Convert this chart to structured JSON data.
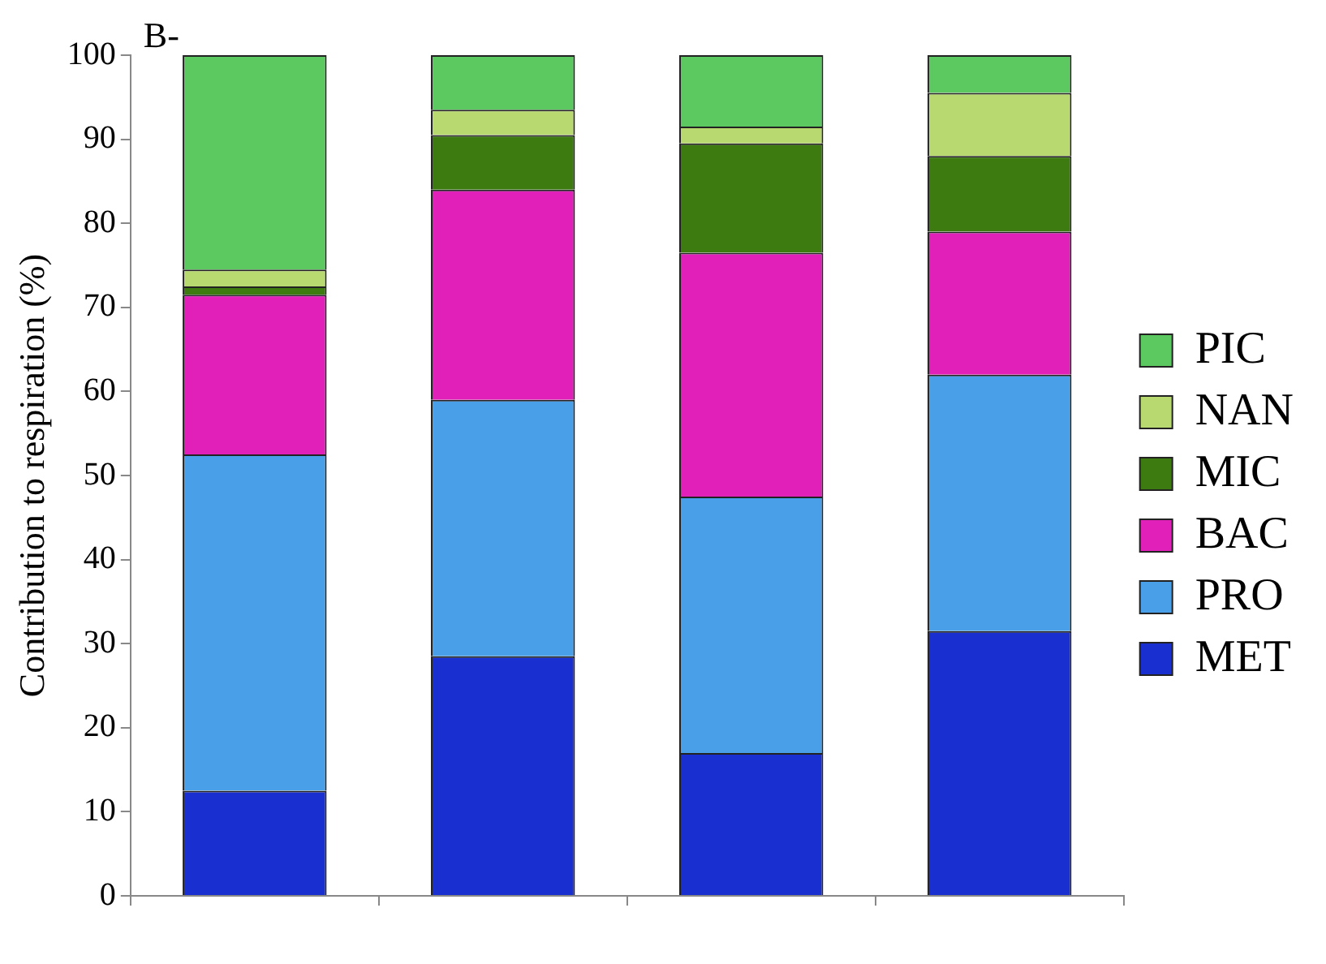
{
  "chart_data": {
    "type": "bar",
    "title": "B-",
    "ylabel": "Contribution to respiration (%)",
    "stacked": true,
    "categories": [
      null,
      null,
      null,
      null
    ],
    "series": [
      {
        "name": "MET",
        "color": "#1a2fd0",
        "values": [
          12.5,
          28.5,
          17,
          31.5
        ]
      },
      {
        "name": "PRO",
        "color": "#4aa0e8",
        "values": [
          40,
          30.5,
          30.5,
          30.5
        ]
      },
      {
        "name": "BAC",
        "color": "#e020b8",
        "values": [
          19,
          25,
          29,
          17
        ]
      },
      {
        "name": "MIC",
        "color": "#3d7a10",
        "values": [
          1,
          6.5,
          13,
          9
        ]
      },
      {
        "name": "NAN",
        "color": "#b8d870",
        "values": [
          2,
          3,
          2,
          7.5
        ]
      },
      {
        "name": "PIC",
        "color": "#5cc860",
        "values": [
          25.5,
          6.5,
          8.5,
          4.5
        ]
      }
    ],
    "ylim": [
      0,
      100
    ],
    "yticks": [
      0,
      10,
      20,
      30,
      40,
      50,
      60,
      70,
      80,
      90,
      100
    ],
    "grid": false,
    "legend": "right"
  }
}
